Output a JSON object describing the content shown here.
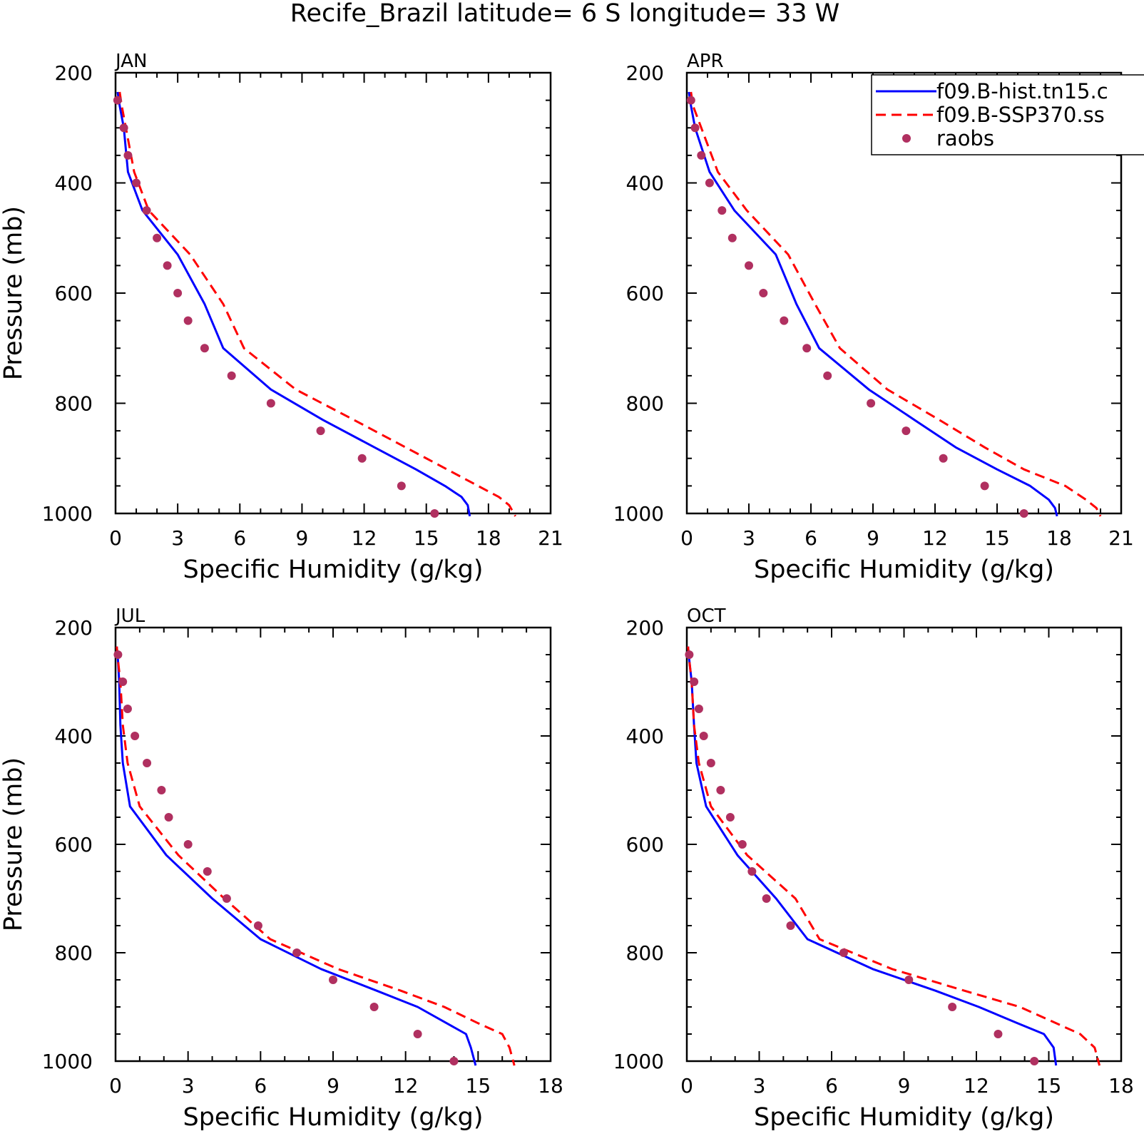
{
  "figure": {
    "title": "Recife_Brazil  latitude= 6 S longitude= 33 W"
  },
  "legend": {
    "placement": "top-right of APR panel",
    "entries": [
      {
        "label": "f09.B-hist.tn15.c",
        "style": "solid",
        "color": "#0000ff"
      },
      {
        "label": "f09.B-SSP370.ss",
        "style": "dashed",
        "color": "#ff0000"
      },
      {
        "label": "raobs",
        "style": "marker",
        "color": "#b03060"
      }
    ]
  },
  "chart_data": [
    {
      "type": "line",
      "panel": "JAN",
      "title": "JAN",
      "xlabel": "Specific Humidity (g/kg)",
      "ylabel": "Pressure (mb)",
      "xlim": [
        0,
        21
      ],
      "ylim": [
        1000,
        200
      ],
      "y_inverted": true,
      "xticks": [
        "0",
        "3",
        "6",
        "9",
        "12",
        "15",
        "18",
        "21"
      ],
      "yticks": [
        "200",
        "400",
        "600",
        "800",
        "1000"
      ],
      "series": [
        {
          "name": "f09.B-hist.tn15.c",
          "style": "solid",
          "color": "#0000ff",
          "points": [
            [
              0.1,
              235
            ],
            [
              0.2,
              260
            ],
            [
              0.4,
              300
            ],
            [
              0.6,
              380
            ],
            [
              1.3,
              450
            ],
            [
              3,
              530
            ],
            [
              4.3,
              620
            ],
            [
              5.2,
              700
            ],
            [
              7.5,
              775
            ],
            [
              10,
              830
            ],
            [
              12.5,
              880
            ],
            [
              14.5,
              920
            ],
            [
              15.9,
              950
            ],
            [
              16.7,
              970
            ],
            [
              17,
              985
            ],
            [
              17.1,
              1005
            ]
          ]
        },
        {
          "name": "f09.B-SSP370.ss",
          "style": "dashed",
          "color": "#ff0000",
          "points": [
            [
              0.2,
              235
            ],
            [
              0.3,
              260
            ],
            [
              0.5,
              300
            ],
            [
              0.9,
              380
            ],
            [
              1.6,
              450
            ],
            [
              3.6,
              530
            ],
            [
              5.2,
              620
            ],
            [
              6.2,
              700
            ],
            [
              8.7,
              775
            ],
            [
              11.5,
              830
            ],
            [
              14,
              880
            ],
            [
              16,
              920
            ],
            [
              17.5,
              950
            ],
            [
              18.5,
              970
            ],
            [
              19,
              985
            ],
            [
              19.3,
              1005
            ]
          ]
        },
        {
          "name": "raobs",
          "style": "marker",
          "color": "#b03060",
          "points": [
            [
              0.1,
              250
            ],
            [
              0.4,
              300
            ],
            [
              0.6,
              350
            ],
            [
              1,
              400
            ],
            [
              1.5,
              450
            ],
            [
              2,
              500
            ],
            [
              2.5,
              550
            ],
            [
              3,
              600
            ],
            [
              3.5,
              650
            ],
            [
              4.3,
              700
            ],
            [
              5.6,
              750
            ],
            [
              7.5,
              800
            ],
            [
              9.9,
              850
            ],
            [
              11.9,
              900
            ],
            [
              13.8,
              950
            ],
            [
              15.4,
              1000
            ]
          ]
        }
      ]
    },
    {
      "type": "line",
      "panel": "APR",
      "title": "APR",
      "xlabel": "Specific Humidity (g/kg)",
      "ylabel": "",
      "xlim": [
        0,
        21
      ],
      "ylim": [
        1000,
        200
      ],
      "y_inverted": true,
      "xticks": [
        "0",
        "3",
        "6",
        "9",
        "12",
        "15",
        "18",
        "21"
      ],
      "yticks": [
        "200",
        "400",
        "600",
        "800",
        "1000"
      ],
      "series": [
        {
          "name": "f09.B-hist.tn15.c",
          "style": "solid",
          "color": "#0000ff",
          "points": [
            [
              0.1,
              235
            ],
            [
              0.2,
              260
            ],
            [
              0.4,
              300
            ],
            [
              1.1,
              380
            ],
            [
              2.3,
              450
            ],
            [
              4.3,
              530
            ],
            [
              5.3,
              620
            ],
            [
              6.4,
              700
            ],
            [
              8.8,
              775
            ],
            [
              11,
              830
            ],
            [
              13,
              880
            ],
            [
              15,
              920
            ],
            [
              16.6,
              950
            ],
            [
              17.5,
              975
            ],
            [
              17.8,
              990
            ],
            [
              17.9,
              1005
            ]
          ]
        },
        {
          "name": "f09.B-SSP370.ss",
          "style": "dashed",
          "color": "#ff0000",
          "points": [
            [
              0.2,
              235
            ],
            [
              0.3,
              260
            ],
            [
              0.7,
              300
            ],
            [
              1.5,
              380
            ],
            [
              2.9,
              450
            ],
            [
              4.9,
              530
            ],
            [
              6.2,
              620
            ],
            [
              7.4,
              700
            ],
            [
              9.7,
              775
            ],
            [
              12.2,
              830
            ],
            [
              14.4,
              880
            ],
            [
              16.3,
              920
            ],
            [
              18.3,
              950
            ],
            [
              19.3,
              975
            ],
            [
              19.8,
              990
            ],
            [
              20,
              1005
            ]
          ]
        },
        {
          "name": "raobs",
          "style": "marker",
          "color": "#b03060",
          "points": [
            [
              0.2,
              250
            ],
            [
              0.4,
              300
            ],
            [
              0.7,
              350
            ],
            [
              1.1,
              400
            ],
            [
              1.7,
              450
            ],
            [
              2.2,
              500
            ],
            [
              3,
              550
            ],
            [
              3.7,
              600
            ],
            [
              4.7,
              650
            ],
            [
              5.8,
              700
            ],
            [
              6.8,
              750
            ],
            [
              8.9,
              800
            ],
            [
              10.6,
              850
            ],
            [
              12.4,
              900
            ],
            [
              14.4,
              950
            ],
            [
              16.3,
              1000
            ]
          ]
        }
      ]
    },
    {
      "type": "line",
      "panel": "JUL",
      "title": "JUL",
      "xlabel": "Specific Humidity (g/kg)",
      "ylabel": "Pressure (mb)",
      "xlim": [
        0,
        18
      ],
      "ylim": [
        1000,
        200
      ],
      "y_inverted": true,
      "xticks": [
        "0",
        "3",
        "6",
        "9",
        "12",
        "15",
        "18"
      ],
      "yticks": [
        "200",
        "400",
        "600",
        "800",
        "1000"
      ],
      "series": [
        {
          "name": "f09.B-hist.tn15.c",
          "style": "solid",
          "color": "#0000ff",
          "points": [
            [
              0.05,
              235
            ],
            [
              0.1,
              260
            ],
            [
              0.15,
              300
            ],
            [
              0.2,
              380
            ],
            [
              0.3,
              450
            ],
            [
              0.6,
              530
            ],
            [
              2.1,
              620
            ],
            [
              4,
              700
            ],
            [
              6,
              775
            ],
            [
              8.5,
              830
            ],
            [
              10.8,
              870
            ],
            [
              12.5,
              900
            ],
            [
              13.7,
              930
            ],
            [
              14.5,
              950
            ],
            [
              14.7,
              975
            ],
            [
              14.9,
              1008
            ]
          ]
        },
        {
          "name": "f09.B-SSP370.ss",
          "style": "dashed",
          "color": "#ff0000",
          "points": [
            [
              0.05,
              235
            ],
            [
              0.1,
              260
            ],
            [
              0.2,
              300
            ],
            [
              0.3,
              380
            ],
            [
              0.5,
              450
            ],
            [
              1,
              530
            ],
            [
              2.6,
              620
            ],
            [
              4.5,
              700
            ],
            [
              6.4,
              775
            ],
            [
              9.2,
              830
            ],
            [
              11.8,
              870
            ],
            [
              13.6,
              900
            ],
            [
              15,
              930
            ],
            [
              16,
              950
            ],
            [
              16.3,
              975
            ],
            [
              16.5,
              1008
            ]
          ]
        },
        {
          "name": "raobs",
          "style": "marker",
          "color": "#b03060",
          "points": [
            [
              0.1,
              250
            ],
            [
              0.3,
              300
            ],
            [
              0.5,
              350
            ],
            [
              0.8,
              400
            ],
            [
              1.3,
              450
            ],
            [
              1.9,
              500
            ],
            [
              2.2,
              550
            ],
            [
              3,
              600
            ],
            [
              3.8,
              650
            ],
            [
              4.6,
              700
            ],
            [
              5.9,
              750
            ],
            [
              7.5,
              800
            ],
            [
              9,
              850
            ],
            [
              10.7,
              900
            ],
            [
              12.5,
              950
            ],
            [
              14,
              1000
            ]
          ]
        }
      ]
    },
    {
      "type": "line",
      "panel": "OCT",
      "title": "OCT",
      "xlabel": "Specific Humidity (g/kg)",
      "ylabel": "",
      "xlim": [
        0,
        18
      ],
      "ylim": [
        1000,
        200
      ],
      "y_inverted": true,
      "xticks": [
        "0",
        "3",
        "6",
        "9",
        "12",
        "15",
        "18"
      ],
      "yticks": [
        "200",
        "400",
        "600",
        "800",
        "1000"
      ],
      "series": [
        {
          "name": "f09.B-hist.tn15.c",
          "style": "solid",
          "color": "#0000ff",
          "points": [
            [
              0.05,
              235
            ],
            [
              0.1,
              260
            ],
            [
              0.2,
              300
            ],
            [
              0.3,
              380
            ],
            [
              0.4,
              450
            ],
            [
              0.8,
              530
            ],
            [
              2.1,
              620
            ],
            [
              3.7,
              700
            ],
            [
              5,
              775
            ],
            [
              7.7,
              830
            ],
            [
              10.3,
              870
            ],
            [
              12.1,
              900
            ],
            [
              13.7,
              930
            ],
            [
              14.8,
              950
            ],
            [
              15.2,
              975
            ],
            [
              15.3,
              1008
            ]
          ]
        },
        {
          "name": "f09.B-SSP370.ss",
          "style": "dashed",
          "color": "#ff0000",
          "points": [
            [
              0.05,
              235
            ],
            [
              0.1,
              260
            ],
            [
              0.2,
              300
            ],
            [
              0.3,
              380
            ],
            [
              0.5,
              450
            ],
            [
              1,
              530
            ],
            [
              2.5,
              620
            ],
            [
              4.5,
              700
            ],
            [
              5.5,
              775
            ],
            [
              8.5,
              830
            ],
            [
              11.5,
              870
            ],
            [
              13.8,
              900
            ],
            [
              15.3,
              930
            ],
            [
              16.3,
              950
            ],
            [
              16.9,
              975
            ],
            [
              17.1,
              1008
            ]
          ]
        },
        {
          "name": "raobs",
          "style": "marker",
          "color": "#b03060",
          "points": [
            [
              0.1,
              250
            ],
            [
              0.3,
              300
            ],
            [
              0.5,
              350
            ],
            [
              0.7,
              400
            ],
            [
              1,
              450
            ],
            [
              1.4,
              500
            ],
            [
              1.8,
              550
            ],
            [
              2.3,
              600
            ],
            [
              2.7,
              650
            ],
            [
              3.3,
              700
            ],
            [
              4.3,
              750
            ],
            [
              6.5,
              800
            ],
            [
              9.2,
              850
            ],
            [
              11,
              900
            ],
            [
              12.9,
              950
            ],
            [
              14.4,
              1000
            ]
          ]
        }
      ]
    }
  ]
}
